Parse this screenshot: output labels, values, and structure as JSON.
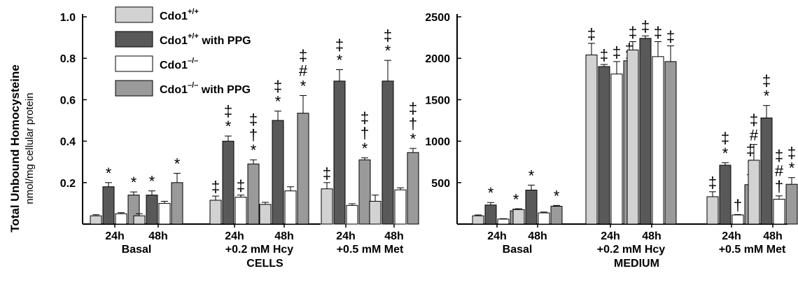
{
  "figure": {
    "ylabel": "Total Unbound Homocysteine",
    "ylabel_sub": "nmol/mg cellular protein"
  },
  "legend": [
    {
      "key": "cdo_wt",
      "base": "Cdo1",
      "sup": "+/+",
      "suffix": "",
      "color": "#d2d2d2"
    },
    {
      "key": "cdo_wt_ppg",
      "base": "Cdo1",
      "sup": "+/+",
      "suffix": " with PPG",
      "color": "#595959"
    },
    {
      "key": "cdo_ko",
      "base": "Cdo1",
      "sup": "–/–",
      "suffix": "",
      "color": "#ffffff"
    },
    {
      "key": "cdo_ko_ppg",
      "base": "Cdo1",
      "sup": "–/–",
      "suffix": " with PPG",
      "color": "#9a9a9a"
    }
  ],
  "chart_data": [
    {
      "type": "bar",
      "panel_label": "CELLS",
      "ylim": [
        0,
        1.0
      ],
      "yticks": [
        "0.2",
        "0.4",
        "0.6",
        "0.8",
        "1.0"
      ],
      "yticks_values": [
        0.2,
        0.4,
        0.6,
        0.8,
        1.0
      ],
      "groups": [
        {
          "label": "Basal",
          "timepoints": [
            {
              "label": "24h",
              "values": [
                0.04,
                0.18,
                0.05,
                0.14
              ],
              "errors": [
                0.005,
                0.02,
                0.005,
                0.015
              ],
              "marks": [
                "",
                "*",
                "",
                "*"
              ]
            },
            {
              "label": "48h",
              "values": [
                0.04,
                0.14,
                0.1,
                0.2
              ],
              "errors": [
                0.01,
                0.02,
                0.01,
                0.045
              ],
              "marks": [
                "",
                "*",
                "",
                "*"
              ]
            }
          ]
        },
        {
          "label": "+0.2 mM Hcy",
          "timepoints": [
            {
              "label": "24h",
              "values": [
                0.115,
                0.4,
                0.13,
                0.29
              ],
              "errors": [
                0.02,
                0.025,
                0.01,
                0.02
              ],
              "marks": [
                "‡",
                "‡\n*",
                "‡",
                "‡\n†\n*"
              ]
            },
            {
              "label": "48h",
              "values": [
                0.095,
                0.5,
                0.16,
                0.535
              ],
              "errors": [
                0.01,
                0.045,
                0.02,
                0.085
              ],
              "marks": [
                "",
                "‡\n*",
                "",
                "‡\n#\n*"
              ]
            }
          ]
        },
        {
          "label": "+0.5 mM Met",
          "timepoints": [
            {
              "label": "24h",
              "values": [
                0.17,
                0.69,
                0.09,
                0.31
              ],
              "errors": [
                0.03,
                0.055,
                0.008,
                0.01
              ],
              "marks": [
                "‡",
                "‡\n*",
                "",
                "‡\n†\n*"
              ]
            },
            {
              "label": "48h",
              "values": [
                0.11,
                0.69,
                0.165,
                0.345
              ],
              "errors": [
                0.03,
                0.1,
                0.01,
                0.02
              ],
              "marks": [
                "",
                "‡\n*",
                "",
                "‡\n†\n*"
              ]
            }
          ]
        }
      ]
    },
    {
      "type": "bar",
      "panel_label": "MEDIUM",
      "ylim": [
        0,
        2500
      ],
      "yticks": [
        "500",
        "1000",
        "1500",
        "2000",
        "2500"
      ],
      "yticks_values": [
        500,
        1000,
        1500,
        2000,
        2500
      ],
      "groups": [
        {
          "label": "Basal",
          "timepoints": [
            {
              "label": "24h",
              "values": [
                100,
                230,
                60,
                160
              ],
              "errors": [
                10,
                30,
                5,
                20
              ],
              "marks": [
                "",
                "*",
                "",
                "*"
              ]
            },
            {
              "label": "48h",
              "values": [
                175,
                410,
                135,
                215
              ],
              "errors": [
                10,
                60,
                10,
                10
              ],
              "marks": [
                "",
                "*",
                "",
                "*"
              ]
            }
          ]
        },
        {
          "label": "+0.2 mM Hcy",
          "timepoints": [
            {
              "label": "24h",
              "values": [
                2040,
                1900,
                1810,
                1970
              ],
              "errors": [
                140,
                25,
                150,
                30
              ],
              "marks": [
                "‡",
                "‡",
                "‡",
                "‡"
              ]
            },
            {
              "label": "48h",
              "values": [
                2100,
                2240,
                2020,
                1960
              ],
              "errors": [
                100,
                30,
                180,
                190
              ],
              "marks": [
                "‡",
                "‡",
                "‡",
                "‡"
              ]
            }
          ]
        },
        {
          "label": "+0.5 mM Met",
          "timepoints": [
            {
              "label": "24h",
              "values": [
                330,
                710,
                110,
                475
              ],
              "errors": [
                60,
                30,
                5,
                120
              ],
              "marks": [
                "‡",
                "‡\n*",
                "†",
                "‡\n*"
              ]
            },
            {
              "label": "48h",
              "values": [
                770,
                1280,
                300,
                480
              ],
              "errors": [
                190,
                150,
                40,
                80
              ],
              "marks": [
                "‡\n#",
                "‡\n*",
                "‡\n#\n†",
                "‡\n*"
              ]
            }
          ]
        }
      ]
    }
  ]
}
